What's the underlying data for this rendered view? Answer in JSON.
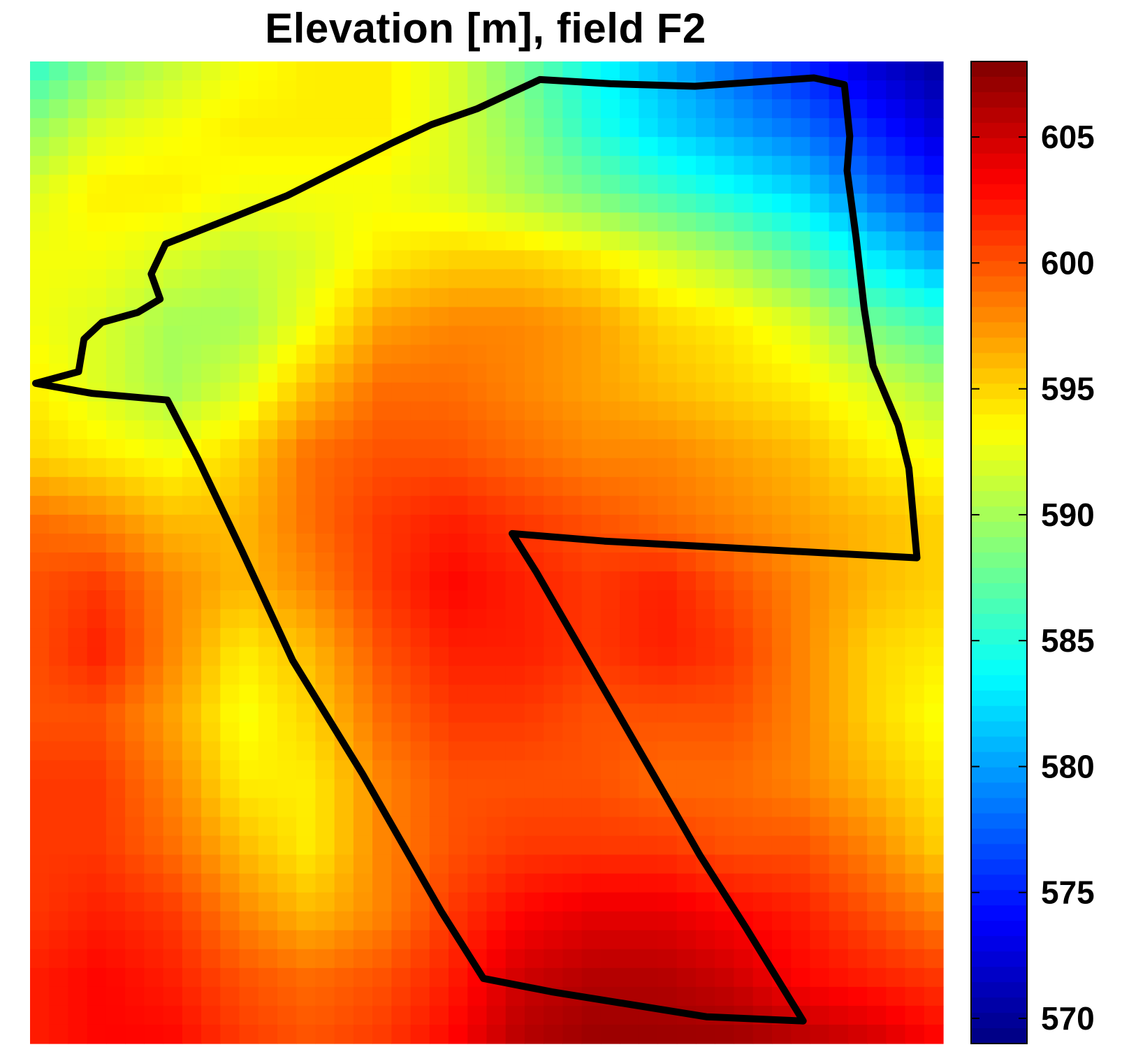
{
  "chart_data": {
    "type": "heatmap",
    "title": "Elevation [m], field F2",
    "xlabel": "",
    "ylabel": "",
    "colormap": "jet",
    "colorbar": {
      "range": [
        569,
        608
      ],
      "ticks": [
        570,
        575,
        580,
        585,
        590,
        595,
        600,
        605
      ],
      "tick_labels": [
        "570",
        "575",
        "580",
        "585",
        "590",
        "595",
        "600",
        "605"
      ]
    },
    "grid_columns": 24,
    "grid_rows": 26,
    "control_points": [
      [
        585,
        589,
        591,
        593,
        594,
        594,
        592,
        588,
        584,
        581,
        578,
        575,
        572,
        570
      ],
      [
        589,
        592,
        593,
        594,
        594,
        594,
        592,
        589,
        585,
        582,
        580,
        578,
        575,
        572
      ],
      [
        592,
        594,
        594,
        593,
        593,
        593,
        592,
        590,
        588,
        586,
        584,
        582,
        578,
        575
      ],
      [
        593,
        593,
        592,
        591,
        592,
        594,
        595,
        595,
        594,
        592,
        590,
        587,
        583,
        580
      ],
      [
        593,
        592,
        590,
        590,
        593,
        597,
        598,
        598,
        597,
        595,
        594,
        592,
        588,
        586
      ],
      [
        594,
        592,
        590,
        592,
        596,
        599,
        599,
        598,
        597,
        596,
        595,
        594,
        592,
        590
      ],
      [
        595,
        594,
        593,
        595,
        599,
        600,
        600,
        599,
        598,
        598,
        597,
        596,
        594,
        593
      ],
      [
        599,
        598,
        596,
        596,
        599,
        601,
        602,
        601,
        600,
        599,
        598,
        597,
        596,
        595
      ],
      [
        600,
        601,
        598,
        596,
        598,
        601,
        603,
        602,
        601,
        602,
        600,
        598,
        596,
        595
      ],
      [
        600,
        602,
        598,
        594,
        596,
        600,
        602,
        602,
        601,
        602,
        601,
        598,
        595,
        594
      ],
      [
        600,
        600,
        597,
        593,
        595,
        599,
        601,
        601,
        600,
        600,
        600,
        598,
        595,
        593
      ],
      [
        601,
        601,
        598,
        594,
        594,
        598,
        600,
        600,
        600,
        599,
        599,
        598,
        596,
        594
      ],
      [
        601,
        601,
        599,
        596,
        594,
        598,
        600,
        601,
        601,
        601,
        600,
        600,
        598,
        595
      ],
      [
        601,
        602,
        601,
        598,
        596,
        598,
        601,
        603,
        604,
        604,
        603,
        602,
        600,
        598
      ],
      [
        602,
        603,
        602,
        600,
        599,
        600,
        602,
        605,
        606,
        606,
        605,
        603,
        602,
        601
      ],
      [
        602,
        603,
        603,
        601,
        600,
        601,
        603,
        606,
        607,
        607,
        607,
        606,
        605,
        603
      ]
    ],
    "boundary_polygon": [
      [
        5.4,
        32.6
      ],
      [
        7.4,
        30.6
      ],
      [
        11.4,
        29.4
      ],
      [
        13.9,
        27.8
      ],
      [
        12.9,
        24.8
      ],
      [
        14.5,
        21.2
      ],
      [
        21.6,
        18.2
      ],
      [
        28.1,
        15.4
      ],
      [
        33.3,
        12.6
      ],
      [
        39.8,
        9.1
      ],
      [
        44.2,
        6.9
      ],
      [
        49.3,
        5.0
      ],
      [
        56.3,
        1.5
      ],
      [
        64.2,
        2.0
      ],
      [
        73.6,
        2.3
      ],
      [
        86.9,
        1.3
      ],
      [
        90.3,
        2.1
      ],
      [
        90.9,
        8.3
      ],
      [
        90.6,
        12.4
      ],
      [
        91.6,
        20.4
      ],
      [
        92.5,
        28.9
      ],
      [
        93.5,
        35.8
      ],
      [
        96.3,
        42.9
      ],
      [
        97.5,
        48.1
      ],
      [
        98.4,
        58.8
      ],
      [
        63.5,
        56.8
      ],
      [
        53.2,
        55.9
      ],
      [
        55.9,
        60.5
      ],
      [
        71.3,
        89.1
      ],
      [
        74.2,
        94.5
      ],
      [
        79.3,
        103.1
      ],
      [
        85.7,
        114.3
      ],
      [
        74.9,
        113.8
      ],
      [
        57.6,
        110.8
      ],
      [
        50.0,
        109.2
      ],
      [
        45.3,
        101.2
      ],
      [
        36.5,
        84.7
      ],
      [
        28.7,
        71.1
      ],
      [
        23.0,
        57.9
      ],
      [
        18.1,
        46.9
      ],
      [
        14.7,
        39.9
      ],
      [
        6.3,
        39.1
      ],
      [
        0.0,
        37.9
      ],
      [
        4.8,
        36.5
      ]
    ],
    "grid": false,
    "legend": "none"
  }
}
